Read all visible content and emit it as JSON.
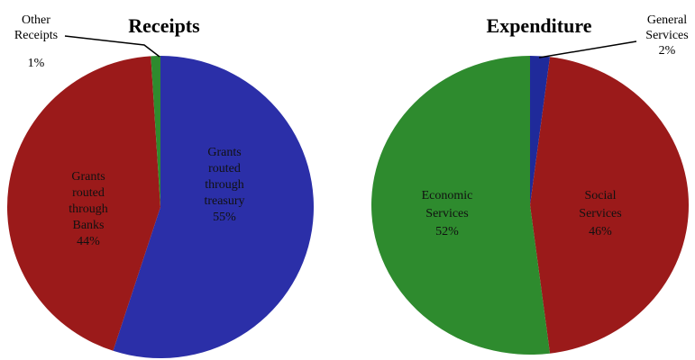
{
  "chart_data": [
    {
      "type": "pie",
      "title": "Receipts",
      "slices": [
        {
          "label": [
            "Grants",
            "routed",
            "through",
            "treasury",
            "55%"
          ],
          "value": 55,
          "color": "#2b2fa8"
        },
        {
          "label": [
            "Grants",
            "routed",
            "through",
            "Banks",
            "44%"
          ],
          "value": 44,
          "color": "#9b1a1a"
        },
        {
          "label": [
            "Other",
            "Receipts",
            "1%"
          ],
          "value": 1,
          "color": "#2e8b2e"
        }
      ]
    },
    {
      "type": "pie",
      "title": "Expenditure",
      "slices": [
        {
          "label": [
            "General",
            "Services",
            "2%"
          ],
          "value": 2,
          "color": "#1f2a9a"
        },
        {
          "label": [
            "Social",
            "Services",
            "46%"
          ],
          "value": 46,
          "color": "#9b1a1a"
        },
        {
          "label": [
            "Economic",
            "Services",
            "52%"
          ],
          "value": 52,
          "color": "#2e8b2e"
        }
      ]
    }
  ]
}
